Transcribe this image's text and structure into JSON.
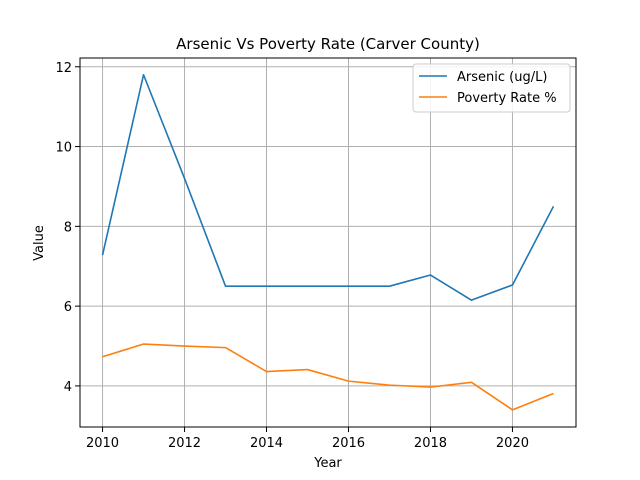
{
  "chart_data": {
    "type": "line",
    "title": "Arsenic Vs Poverty Rate (Carver County)",
    "xlabel": "Year",
    "ylabel": "Value",
    "x": [
      2010,
      2011,
      2012,
      2013,
      2014,
      2015,
      2016,
      2017,
      2018,
      2019,
      2020,
      2021
    ],
    "series": [
      {
        "name": "Arsenic (ug/L)",
        "color": "#1f77b4",
        "values": [
          7.28,
          11.8,
          9.2,
          6.5,
          6.5,
          6.5,
          6.5,
          6.5,
          6.78,
          6.15,
          6.53,
          8.5
        ]
      },
      {
        "name": "Poverty Rate %",
        "color": "#ff7f0e",
        "values": [
          4.73,
          5.05,
          5.0,
          4.96,
          4.36,
          4.41,
          4.12,
          4.02,
          3.97,
          4.09,
          3.4,
          3.81
        ]
      }
    ],
    "xlim": [
      2009.45,
      2021.55
    ],
    "ylim": [
      2.97,
      12.22
    ],
    "xticks": [
      2010,
      2012,
      2014,
      2016,
      2018,
      2020
    ],
    "yticks": [
      4,
      6,
      8,
      10,
      12
    ],
    "grid": true,
    "legend": "top-right"
  }
}
